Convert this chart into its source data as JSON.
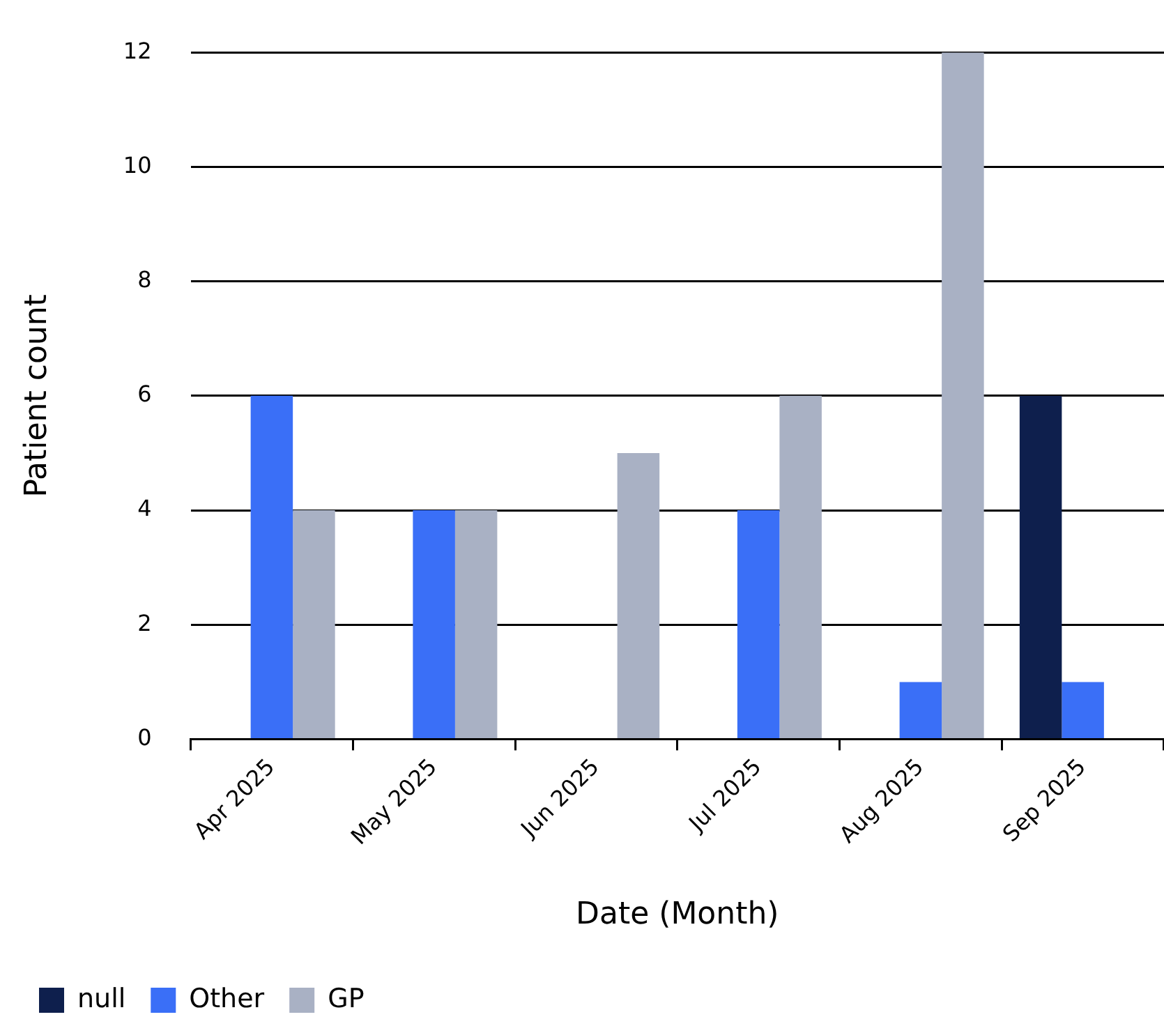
{
  "chart_data": {
    "type": "bar",
    "xlabel": "Date (Month)",
    "ylabel": "Patient count",
    "categories": [
      "Apr 2025",
      "May 2025",
      "Jun 2025",
      "Jul 2025",
      "Aug 2025",
      "Sep 2025"
    ],
    "series": [
      {
        "name": "null",
        "color": "#0e1f4d",
        "values": [
          null,
          null,
          null,
          null,
          null,
          6
        ]
      },
      {
        "name": "Other",
        "color": "#3a6ff7",
        "values": [
          6,
          4,
          null,
          4,
          1,
          1
        ]
      },
      {
        "name": "GP",
        "color": "#a9b1c4",
        "values": [
          4,
          4,
          5,
          6,
          12,
          null
        ]
      }
    ],
    "ylim": [
      0,
      12
    ],
    "yticks": [
      0,
      2,
      4,
      6,
      8,
      10,
      12
    ],
    "grid": "y",
    "legend": "bottom left"
  }
}
